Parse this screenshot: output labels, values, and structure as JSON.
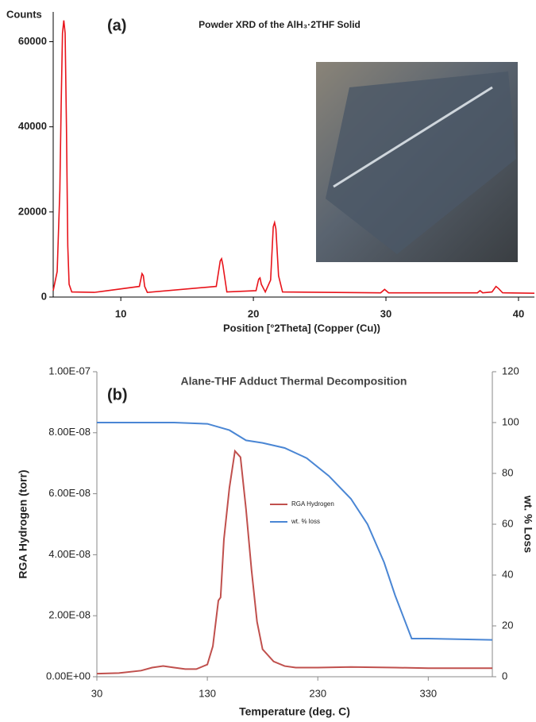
{
  "chart_data": [
    {
      "type": "line",
      "panel": "(a)",
      "title": "Powder XRD of the AlH₃·2THF Solid",
      "ylabel": "Counts",
      "xlabel": "Position [°2Theta] (Copper (Cu))",
      "color": "#e8141b",
      "x": [
        4.9,
        5.2,
        5.4,
        5.5,
        5.6,
        5.7,
        5.8,
        5.9,
        6.0,
        6.1,
        6.3,
        8,
        11.4,
        11.6,
        11.7,
        11.8,
        12.0,
        17.2,
        17.5,
        17.6,
        17.7,
        18.0,
        20.2,
        20.4,
        20.5,
        20.6,
        20.9,
        21.3,
        21.5,
        21.6,
        21.7,
        21.9,
        22.2,
        29.6,
        29.9,
        30.2,
        36.9,
        37.1,
        37.3,
        38.0,
        38.3,
        38.5,
        38.8,
        41.2
      ],
      "values": [
        1500,
        6000,
        25000,
        45000,
        62000,
        65000,
        62000,
        40000,
        12000,
        3000,
        1200,
        1100,
        2500,
        5500,
        5000,
        2500,
        1100,
        2500,
        8500,
        9000,
        7500,
        1200,
        1500,
        4200,
        4500,
        3000,
        1200,
        4000,
        16500,
        17500,
        16000,
        5000,
        1200,
        1000,
        1800,
        1000,
        1000,
        1500,
        1000,
        1200,
        2500,
        2000,
        1000,
        900
      ],
      "xlim": [
        4.9,
        41.2
      ],
      "ylim": [
        0,
        67000
      ],
      "xticks": [
        10,
        20,
        30,
        40
      ],
      "yticks": [
        0,
        20000,
        40000,
        60000
      ]
    },
    {
      "type": "line",
      "panel": "(b)",
      "title": "Alane-THF Adduct Thermal Decomposition",
      "ylabel": "RGA Hydrogen (torr)",
      "y2label": "wt. % Loss",
      "xlabel": "Temperature (deg. C)",
      "series": [
        {
          "name": "RGA Hydrogen",
          "color": "#c0504d",
          "x": [
            30,
            50,
            70,
            80,
            90,
            100,
            110,
            120,
            130,
            135,
            140,
            142,
            145,
            150,
            155,
            160,
            165,
            170,
            175,
            180,
            190,
            200,
            210,
            230,
            260,
            300,
            330,
            388
          ],
          "values": [
            1e-09,
            1.2e-09,
            2e-09,
            3e-09,
            3.5e-09,
            3e-09,
            2.5e-09,
            2.5e-09,
            4e-09,
            1e-08,
            2.5e-08,
            2.6e-08,
            4.5e-08,
            6.2e-08,
            7.4e-08,
            7.2e-08,
            5.5e-08,
            3.5e-08,
            1.8e-08,
            9e-09,
            5e-09,
            3.5e-09,
            3e-09,
            3e-09,
            3.2e-09,
            3e-09,
            2.8e-09,
            2.8e-09
          ]
        },
        {
          "name": "wt. % loss",
          "color": "#4a86d4",
          "axis": "y2",
          "x": [
            30,
            100,
            130,
            150,
            165,
            180,
            200,
            220,
            240,
            260,
            275,
            290,
            300,
            315,
            330,
            388
          ],
          "values": [
            100,
            100,
            99.5,
            97,
            93,
            92,
            90,
            86,
            79,
            70,
            60,
            45,
            32,
            15,
            15,
            14.5
          ]
        }
      ],
      "xlim": [
        30,
        388
      ],
      "ylim": [
        0,
        1e-07
      ],
      "y2lim": [
        0,
        120
      ],
      "xticks": [
        30,
        130,
        230,
        330
      ],
      "yticks": [
        {
          "value": 0,
          "label": "0.00E+00"
        },
        {
          "value": 2e-08,
          "label": "2.00E-08"
        },
        {
          "value": 4e-08,
          "label": "4.00E-08"
        },
        {
          "value": 6e-08,
          "label": "6.00E-08"
        },
        {
          "value": 8e-08,
          "label": "8.00E-08"
        },
        {
          "value": 1e-07,
          "label": "1.00E-07"
        }
      ],
      "y2ticks": [
        0,
        20,
        40,
        60,
        80,
        100,
        120
      ]
    }
  ]
}
